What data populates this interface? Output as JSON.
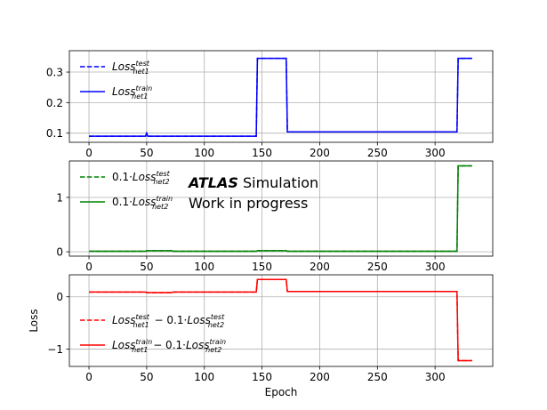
{
  "chart_data": [
    {
      "type": "line",
      "x_ticks": [
        0,
        50,
        100,
        150,
        200,
        250,
        300
      ],
      "y_ticks": [
        0.1,
        0.2,
        0.3
      ],
      "y_tick_labels": [
        "0.1",
        "0.2",
        "0.3"
      ],
      "xlim": [
        -17,
        350
      ],
      "ylim": [
        0.07,
        0.37
      ],
      "grid": true,
      "legend_loc": "upper-left",
      "series": [
        {
          "name": "Loss",
          "sup": "test",
          "sub": "net1",
          "color": "#0000ff",
          "style": "dashed",
          "points": [
            [
              0,
              0.09
            ],
            [
              49,
              0.09
            ],
            [
              50,
              0.1
            ],
            [
              51,
              0.09
            ],
            [
              145,
              0.09
            ],
            [
              146,
              0.345
            ],
            [
              171,
              0.345
            ],
            [
              172,
              0.104
            ],
            [
              319,
              0.104
            ],
            [
              320,
              0.345
            ],
            [
              332,
              0.345
            ]
          ]
        },
        {
          "name": "Loss",
          "sup": "train",
          "sub": "net1",
          "color": "#0000ff",
          "style": "solid",
          "points": [
            [
              0,
              0.09
            ],
            [
              49,
              0.09
            ],
            [
              50,
              0.1
            ],
            [
              51,
              0.09
            ],
            [
              145,
              0.09
            ],
            [
              146,
              0.345
            ],
            [
              171,
              0.345
            ],
            [
              172,
              0.104
            ],
            [
              319,
              0.104
            ],
            [
              320,
              0.345
            ],
            [
              332,
              0.345
            ]
          ]
        }
      ]
    },
    {
      "type": "line",
      "x_ticks": [
        0,
        50,
        100,
        150,
        200,
        250,
        300
      ],
      "y_ticks": [
        0,
        1
      ],
      "y_tick_labels": [
        "0",
        "1"
      ],
      "xlim": [
        -17,
        350
      ],
      "ylim": [
        -0.08,
        1.67
      ],
      "grid": true,
      "legend_loc": "upper-left",
      "series": [
        {
          "name": "0.1·Loss",
          "sup": "test",
          "sub": "net2",
          "color": "#008000",
          "style": "dashed",
          "points": [
            [
              0,
              0.01
            ],
            [
              49,
              0.01
            ],
            [
              50,
              0.02
            ],
            [
              72,
              0.02
            ],
            [
              73,
              0.01
            ],
            [
              145,
              0.01
            ],
            [
              146,
              0.02
            ],
            [
              171,
              0.02
            ],
            [
              172,
              0.01
            ],
            [
              319,
              0.01
            ],
            [
              320,
              1.58
            ],
            [
              332,
              1.58
            ]
          ]
        },
        {
          "name": "0.1·Loss",
          "sup": "train",
          "sub": "net2",
          "color": "#008000",
          "style": "solid",
          "points": [
            [
              0,
              0.01
            ],
            [
              49,
              0.01
            ],
            [
              50,
              0.02
            ],
            [
              72,
              0.02
            ],
            [
              73,
              0.01
            ],
            [
              145,
              0.01
            ],
            [
              146,
              0.02
            ],
            [
              171,
              0.02
            ],
            [
              172,
              0.01
            ],
            [
              319,
              0.01
            ],
            [
              320,
              1.58
            ],
            [
              332,
              1.58
            ]
          ]
        }
      ],
      "annotations": {
        "atlas": "ATLAS",
        "simulation": "Simulation",
        "work": "Work in progress"
      }
    },
    {
      "type": "line",
      "x_ticks": [
        0,
        50,
        100,
        150,
        200,
        250,
        300
      ],
      "x_tick_labels": [
        "0",
        "50",
        "100",
        "150",
        "200",
        "250",
        "300"
      ],
      "y_ticks": [
        -1,
        0
      ],
      "y_tick_labels": [
        "−1",
        "0"
      ],
      "xlim": [
        -17,
        350
      ],
      "ylim": [
        -1.33,
        0.42
      ],
      "xlabel": "Epoch",
      "ylabel": "Loss",
      "grid": true,
      "legend_loc": "lower-left",
      "series": [
        {
          "name": "Loss",
          "sup": "test",
          "sub": "net1",
          "rest": " − 0.1·Loss",
          "sup2": "test",
          "sub2": "net2",
          "color": "#ff0000",
          "style": "dashed",
          "points": [
            [
              0,
              0.09
            ],
            [
              49,
              0.09
            ],
            [
              50,
              0.08
            ],
            [
              72,
              0.08
            ],
            [
              73,
              0.09
            ],
            [
              145,
              0.09
            ],
            [
              146,
              0.33
            ],
            [
              171,
              0.33
            ],
            [
              172,
              0.1
            ],
            [
              319,
              0.1
            ],
            [
              320,
              -1.22
            ],
            [
              332,
              -1.22
            ]
          ]
        },
        {
          "name": "Loss",
          "sup": "train",
          "sub": "net1",
          "rest": " − 0.1·Loss",
          "sup2": "train",
          "sub2": "net2",
          "color": "#ff0000",
          "style": "solid",
          "points": [
            [
              0,
              0.09
            ],
            [
              49,
              0.09
            ],
            [
              50,
              0.08
            ],
            [
              72,
              0.08
            ],
            [
              73,
              0.09
            ],
            [
              145,
              0.09
            ],
            [
              146,
              0.33
            ],
            [
              171,
              0.33
            ],
            [
              172,
              0.1
            ],
            [
              319,
              0.1
            ],
            [
              320,
              -1.22
            ],
            [
              332,
              -1.22
            ]
          ]
        }
      ]
    }
  ]
}
